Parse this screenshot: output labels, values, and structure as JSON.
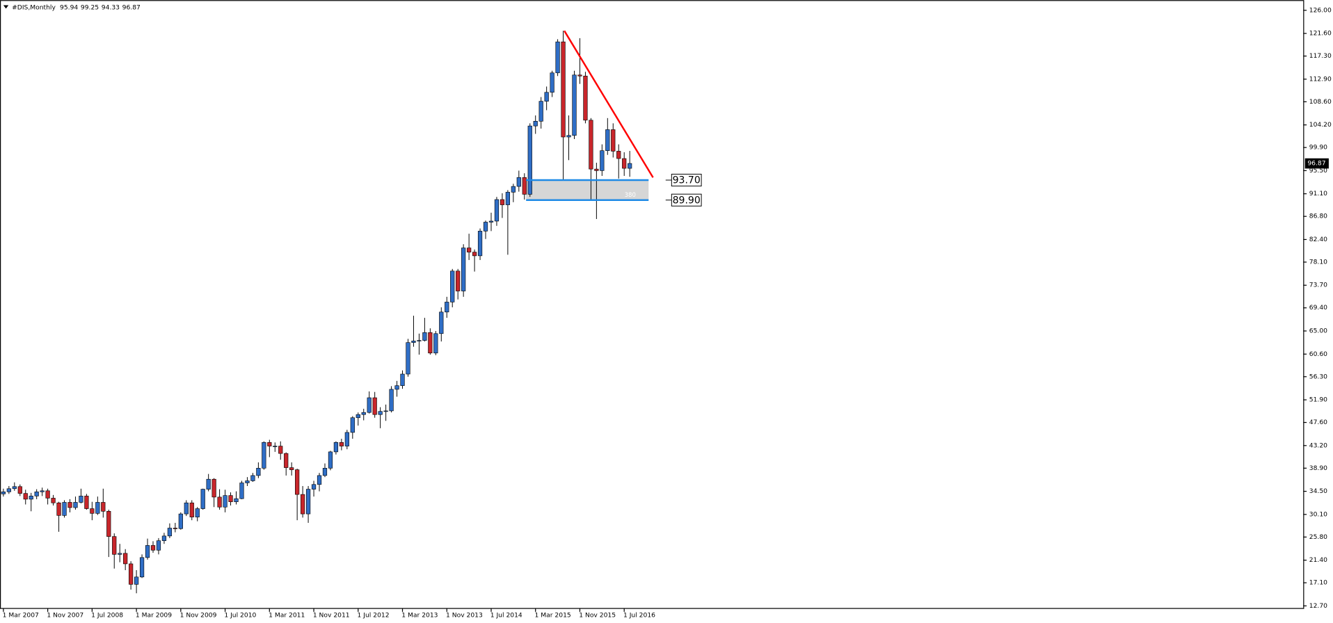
{
  "chart_data": {
    "type": "candlestick",
    "title": "#DIS,Monthly",
    "categories": [
      "1 Mar 2007",
      null,
      null,
      null,
      null,
      null,
      null,
      null,
      "1 Nov 2007",
      null,
      null,
      null,
      null,
      null,
      null,
      null,
      "1 Jul 2008",
      null,
      null,
      null,
      null,
      null,
      null,
      null,
      "1 Mar 2009",
      null,
      null,
      null,
      null,
      null,
      null,
      null,
      "1 Nov 2009",
      null,
      null,
      null,
      null,
      null,
      null,
      null,
      "1 Jul 2010",
      null,
      null,
      null,
      null,
      null,
      null,
      null,
      "1 Mar 2011",
      null,
      null,
      null,
      null,
      null,
      null,
      null,
      "1 Nov 2011",
      null,
      null,
      null,
      null,
      null,
      null,
      null,
      "1 Jul 2012",
      null,
      null,
      null,
      null,
      null,
      null,
      null,
      "1 Mar 2013",
      null,
      null,
      null,
      null,
      null,
      null,
      null,
      "1 Nov 2013",
      null,
      null,
      null,
      null,
      null,
      null,
      null,
      "1 Jul 2014",
      null,
      null,
      null,
      null,
      null,
      null,
      null,
      "1 Mar 2015",
      null,
      null,
      null,
      null,
      null,
      null,
      null,
      "1 Nov 2015",
      null,
      null,
      null,
      null,
      null,
      null,
      null,
      "1 Jul 2016",
      null
    ],
    "open": [
      34.0,
      34.4,
      35.0,
      35.4,
      34.1,
      33.0,
      33.6,
      34.4,
      34.6,
      33.2,
      32.3,
      29.9,
      32.4,
      31.4,
      32.4,
      33.6,
      31.2,
      30.3,
      32.4,
      30.7,
      25.9,
      22.5,
      22.7,
      20.7,
      16.8,
      18.2,
      21.9,
      24.2,
      23.3,
      25.1,
      26.0,
      27.5,
      27.4,
      30.2,
      32.3,
      29.6,
      31.2,
      34.9,
      36.8,
      33.4,
      31.5,
      33.7,
      32.5,
      33.1,
      36.1,
      36.5,
      37.5,
      38.9,
      43.8,
      43.1,
      43.1,
      41.7,
      39.0,
      38.6,
      33.9,
      30.2,
      34.9,
      35.8,
      37.5,
      38.9,
      42.0,
      43.8,
      43.1,
      45.7,
      48.5,
      49.1,
      49.5,
      52.3,
      49.1,
      49.7,
      49.8,
      53.9,
      54.6,
      56.8,
      62.8,
      63.1,
      63.2,
      64.7,
      60.8,
      64.5,
      68.6,
      70.5,
      76.4,
      72.6,
      80.8,
      80.0,
      79.3,
      84.0,
      85.7,
      85.9,
      90.0,
      89.0,
      91.4,
      92.5,
      94.2,
      91.0,
      104.0,
      104.9,
      108.7,
      110.4,
      114.1,
      120.0,
      101.9,
      102.2,
      113.7,
      113.5,
      105.1,
      95.8,
      95.5,
      99.3,
      103.3,
      99.2,
      97.8,
      95.94
    ],
    "high": [
      35.0,
      35.5,
      36.2,
      35.8,
      34.8,
      34.2,
      34.9,
      35.2,
      35.0,
      33.8,
      32.5,
      32.8,
      33.0,
      33.5,
      35.0,
      34.0,
      32.5,
      33.5,
      35.0,
      31.0,
      26.5,
      24.5,
      23.5,
      21.2,
      19.5,
      22.5,
      25.5,
      25.0,
      25.6,
      26.6,
      28.4,
      28.5,
      30.5,
      32.8,
      32.8,
      31.5,
      35.0,
      37.8,
      37.0,
      34.9,
      34.8,
      34.3,
      34.5,
      36.5,
      37.2,
      38.0,
      40.0,
      44.0,
      44.3,
      43.8,
      44.0,
      41.9,
      40.0,
      38.8,
      35.5,
      35.5,
      36.5,
      38.0,
      39.8,
      42.2,
      44.0,
      44.5,
      46.2,
      48.8,
      49.5,
      50.2,
      53.5,
      53.4,
      50.5,
      51.0,
      54.5,
      55.5,
      57.5,
      63.5,
      67.9,
      64.5,
      67.5,
      65.5,
      65.0,
      69.5,
      71.5,
      76.8,
      76.8,
      81.5,
      83.5,
      80.5,
      84.5,
      86.0,
      87.5,
      90.5,
      91.2,
      91.8,
      93.0,
      95.5,
      95.0,
      104.5,
      106.0,
      109.5,
      111.5,
      114.5,
      120.5,
      122.1,
      106.0,
      114.5,
      120.7,
      114.3,
      105.5,
      97.0,
      100.5,
      105.5,
      104.5,
      100.5,
      99.0,
      99.25
    ],
    "low": [
      33.5,
      34.0,
      34.6,
      33.6,
      32.0,
      30.7,
      33.0,
      33.6,
      32.0,
      31.8,
      26.8,
      29.5,
      30.5,
      31.0,
      32.2,
      31.0,
      29.0,
      30.0,
      29.5,
      22.0,
      19.8,
      21.0,
      19.5,
      15.8,
      15.1,
      18.0,
      21.5,
      22.8,
      22.5,
      24.5,
      25.6,
      26.7,
      27.2,
      29.8,
      29.0,
      28.8,
      31.0,
      34.5,
      31.5,
      31.0,
      30.5,
      31.8,
      32.0,
      33.0,
      35.5,
      36.3,
      37.0,
      38.6,
      41.0,
      42.0,
      40.5,
      37.5,
      37.5,
      29.0,
      29.5,
      28.5,
      33.5,
      34.5,
      37.2,
      38.5,
      41.5,
      42.3,
      42.5,
      44.5,
      47.0,
      48.0,
      49.3,
      48.5,
      46.5,
      47.9,
      49.5,
      52.5,
      54.0,
      56.3,
      62.0,
      60.5,
      63.0,
      60.5,
      60.4,
      63.0,
      67.5,
      69.5,
      71.0,
      71.5,
      78.5,
      76.3,
      78.5,
      82.5,
      84.0,
      85.0,
      86.5,
      79.5,
      89.5,
      91.5,
      90.0,
      90.5,
      102.5,
      103.5,
      107.0,
      109.5,
      113.5,
      93.8,
      97.5,
      101.5,
      112.0,
      104.5,
      90.0,
      86.3,
      94.5,
      98.5,
      98.0,
      94.0,
      94.5,
      94.33
    ],
    "close": [
      34.4,
      35.0,
      35.4,
      34.1,
      33.0,
      33.6,
      34.4,
      34.6,
      33.2,
      32.3,
      29.9,
      32.4,
      31.4,
      32.4,
      33.6,
      31.2,
      30.3,
      32.4,
      30.7,
      25.9,
      22.5,
      22.7,
      20.7,
      16.8,
      18.2,
      21.9,
      24.2,
      23.3,
      25.1,
      26.0,
      27.5,
      27.4,
      30.2,
      32.3,
      29.6,
      31.2,
      34.9,
      36.8,
      33.4,
      31.5,
      33.7,
      32.5,
      33.1,
      36.1,
      36.5,
      37.5,
      38.9,
      43.8,
      43.1,
      43.1,
      41.7,
      39.0,
      38.6,
      33.9,
      30.2,
      34.9,
      35.8,
      37.5,
      38.9,
      42.0,
      43.8,
      43.1,
      45.7,
      48.5,
      49.1,
      49.5,
      52.3,
      49.1,
      49.7,
      49.8,
      53.9,
      54.6,
      56.8,
      62.8,
      63.1,
      63.2,
      64.7,
      60.8,
      64.5,
      68.6,
      70.5,
      76.4,
      72.6,
      80.8,
      80.0,
      79.3,
      84.0,
      85.7,
      85.9,
      90.0,
      89.0,
      91.4,
      92.5,
      94.2,
      91.0,
      104.0,
      104.9,
      108.7,
      110.4,
      114.1,
      120.0,
      101.9,
      102.2,
      113.7,
      113.5,
      105.1,
      95.8,
      95.5,
      99.3,
      103.3,
      99.2,
      97.8,
      95.94,
      96.87
    ],
    "up_color": "#2f6ec6",
    "down_color": "#c8262b",
    "ylim": [
      12.7,
      126
    ],
    "yticks": [
      {
        "value": 12.7,
        "label": "12.70"
      },
      {
        "value": 17.1,
        "label": "17.10"
      },
      {
        "value": 21.4,
        "label": "21.40"
      },
      {
        "value": 25.8,
        "label": "25.80"
      },
      {
        "value": 30.1,
        "label": "30.10"
      },
      {
        "value": 34.5,
        "label": "34.50"
      },
      {
        "value": 38.9,
        "label": "38.90"
      },
      {
        "value": 43.2,
        "label": "43.20"
      },
      {
        "value": 47.6,
        "label": "47.60"
      },
      {
        "value": 51.9,
        "label": "51.90"
      },
      {
        "value": 56.3,
        "label": "56.30"
      },
      {
        "value": 60.6,
        "label": "60.60"
      },
      {
        "value": 65,
        "label": "65.00"
      },
      {
        "value": 69.4,
        "label": "69.40"
      },
      {
        "value": 73.7,
        "label": "73.70"
      },
      {
        "value": 78.1,
        "label": "78.10"
      },
      {
        "value": 82.4,
        "label": "82.40"
      },
      {
        "value": 86.8,
        "label": "86.80"
      },
      {
        "value": 91.1,
        "label": "91.10"
      },
      {
        "value": 95.5,
        "label": "95.50"
      },
      {
        "value": 99.9,
        "label": "99.90"
      },
      {
        "value": 104.2,
        "label": "104.20"
      },
      {
        "value": 108.6,
        "label": "108.60"
      },
      {
        "value": 112.9,
        "label": "112.90"
      },
      {
        "value": 117.3,
        "label": "117.30"
      },
      {
        "value": 121.6,
        "label": "121.60"
      },
      {
        "value": 126,
        "label": "126.00"
      }
    ],
    "zone": {
      "top": {
        "value": 93.7,
        "label": "93.70"
      },
      "bottom": {
        "value": 89.9,
        "label": "89.90"
      },
      "text": "380",
      "start_index": 94.3,
      "end_index": 116.4,
      "line_color": "#1e8ae6",
      "fill_color": "#d6d6d6"
    },
    "trendline": {
      "color": "#ff0000",
      "start": {
        "index": 101.2,
        "value": 122.1
      },
      "end": {
        "index": 117.2,
        "value": 94.2
      }
    }
  }
}
